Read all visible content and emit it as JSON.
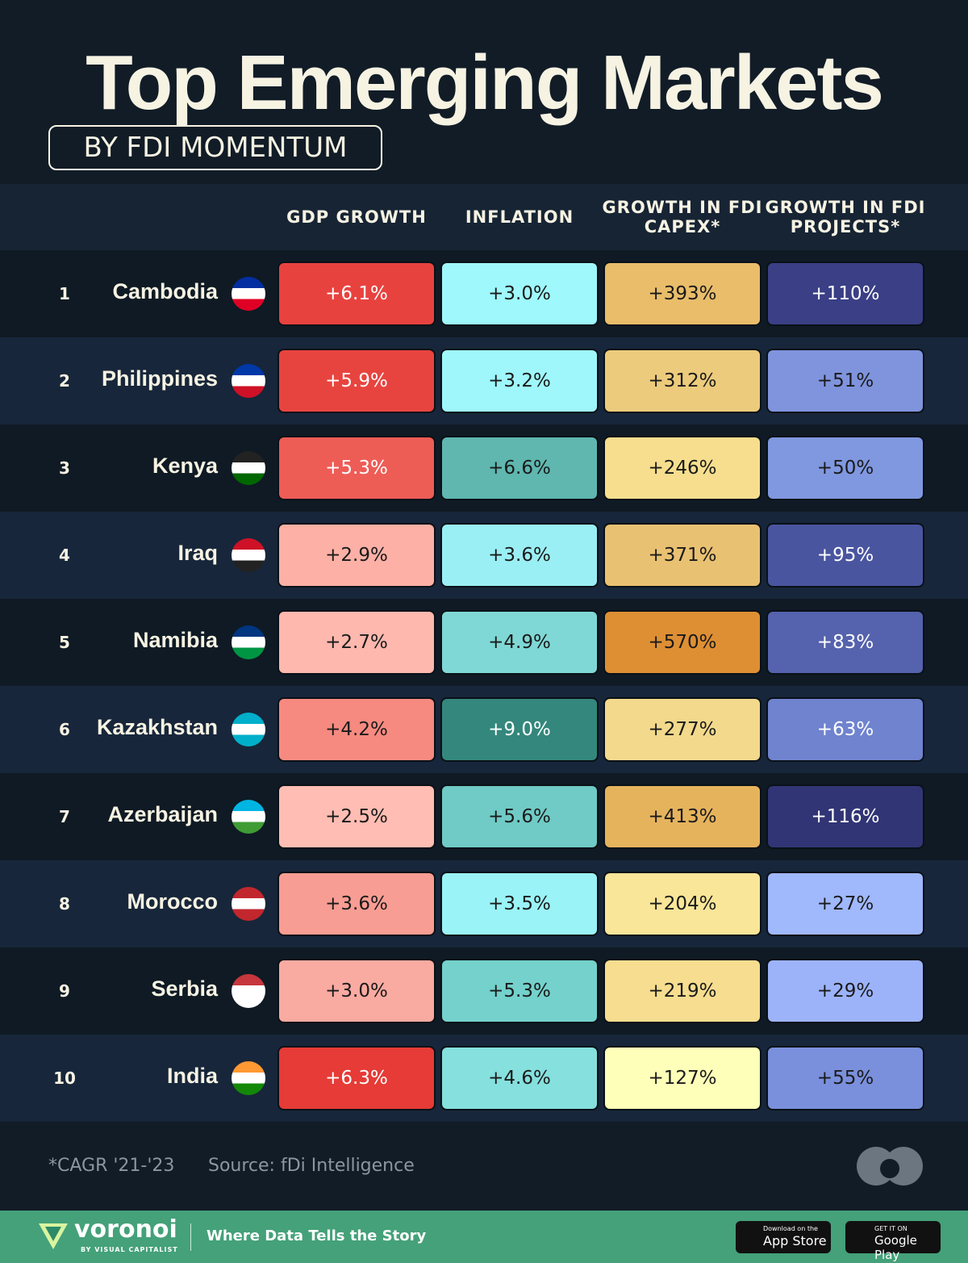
{
  "header": {
    "title": "Top Emerging Markets",
    "subtitle": "BY FDI MOMENTUM"
  },
  "table": {
    "columns": [
      "GDP GROWTH",
      "INFLATION",
      "GROWTH IN FDI CAPEX*",
      "GROWTH IN FDI PROJECTS*"
    ],
    "rows": [
      {
        "rank": "1",
        "country": "Cambodia",
        "cells": [
          "+6.1%",
          "+3.0%",
          "+393%",
          "+110%"
        ],
        "colors": [
          "#e8423f",
          "#9ff8fb",
          "#e9bd6a",
          "#3a3f86"
        ]
      },
      {
        "rank": "2",
        "country": "Philippines",
        "cells": [
          "+5.9%",
          "+3.2%",
          "+312%",
          "+51%"
        ],
        "colors": [
          "#e8443f",
          "#9ff7fb",
          "#eccb7c",
          "#7f94dd"
        ]
      },
      {
        "rank": "3",
        "country": "Kenya",
        "cells": [
          "+5.3%",
          "+6.6%",
          "+246%",
          "+50%"
        ],
        "colors": [
          "#ee5c56",
          "#5fb7b0",
          "#f6de8e",
          "#8098e0"
        ]
      },
      {
        "rank": "4",
        "country": "Iraq",
        "cells": [
          "+2.9%",
          "+3.6%",
          "+371%",
          "+95%"
        ],
        "colors": [
          "#fdb0a6",
          "#9aeff4",
          "#e9c172",
          "#4a55a0"
        ]
      },
      {
        "rank": "5",
        "country": "Namibia",
        "cells": [
          "+2.7%",
          "+4.9%",
          "+570%",
          "+83%"
        ],
        "colors": [
          "#feb8ae",
          "#7fd8d5",
          "#de8f34",
          "#5562ad"
        ]
      },
      {
        "rank": "6",
        "country": "Kazakhstan",
        "cells": [
          "+4.2%",
          "+9.0%",
          "+277%",
          "+63%"
        ],
        "colors": [
          "#f68a80",
          "#34877c",
          "#f3d98c",
          "#6f83cf"
        ]
      },
      {
        "rank": "7",
        "country": "Azerbaijan",
        "cells": [
          "+2.5%",
          "+5.6%",
          "+413%",
          "+116%"
        ],
        "colors": [
          "#ffbdb3",
          "#70cac5",
          "#e6b35d",
          "#313575"
        ]
      },
      {
        "rank": "8",
        "country": "Morocco",
        "cells": [
          "+3.6%",
          "+3.5%",
          "+204%",
          "+27%"
        ],
        "colors": [
          "#f89d93",
          "#9af3f6",
          "#f9e699",
          "#a0b8fc"
        ]
      },
      {
        "rank": "9",
        "country": "Serbia",
        "cells": [
          "+3.0%",
          "+5.3%",
          "+219%",
          "+29%"
        ],
        "colors": [
          "#f9aaa1",
          "#74d1cb",
          "#f6dd8f",
          "#9cb3fa"
        ]
      },
      {
        "rank": "10",
        "country": "India",
        "cells": [
          "+6.3%",
          "+4.6%",
          "+127%",
          "+55%"
        ],
        "colors": [
          "#e63b36",
          "#85e0de",
          "#feffb8",
          "#7a90dc"
        ]
      }
    ]
  },
  "footer": {
    "note": "*CAGR '21-'23",
    "source": "Source: fDi Intelligence",
    "brand": "voronoi",
    "brand_sub": "BY VISUAL CAPITALIST",
    "tagline": "Where Data Tells the Story",
    "app_store_small": "Download on the",
    "app_store": "App Store",
    "google_small": "GET IT ON",
    "google": "Google Play"
  }
}
